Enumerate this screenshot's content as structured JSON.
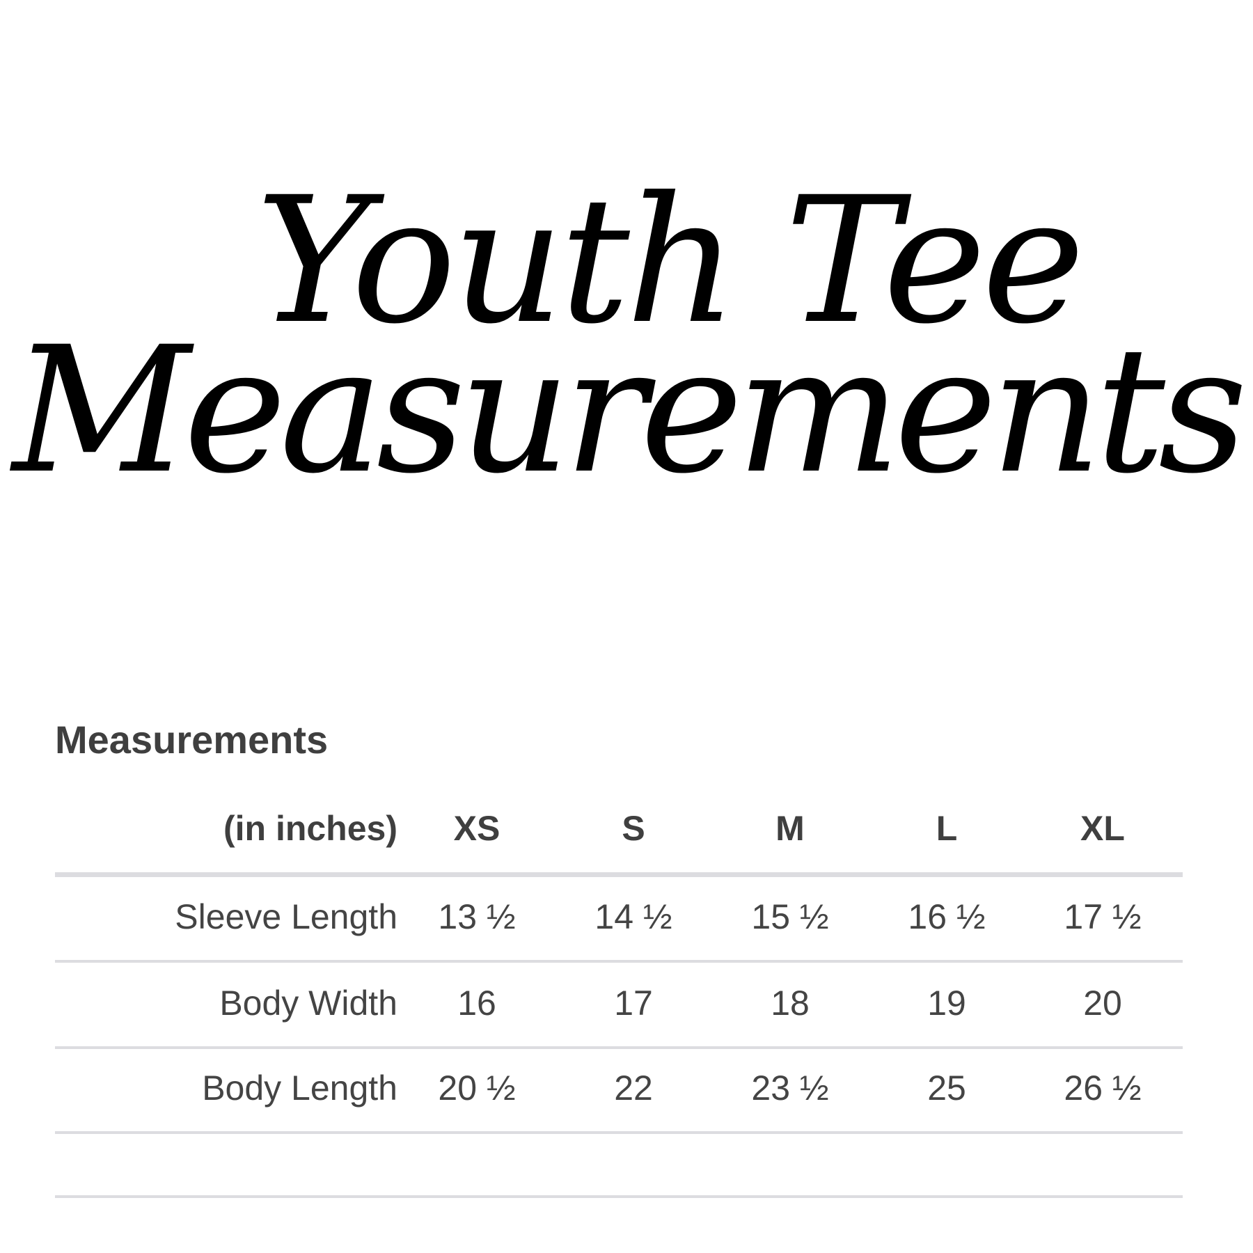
{
  "title": {
    "line1": "Youth Tee",
    "line2": "Measurements"
  },
  "table": {
    "heading": "Measurements",
    "unit_label": "(in inches)",
    "sizes": [
      "XS",
      "S",
      "M",
      "L",
      "XL"
    ],
    "rows": [
      {
        "label": "Sleeve Length",
        "values": [
          "13 ½",
          "14 ½",
          "15 ½",
          "16 ½",
          "17 ½"
        ]
      },
      {
        "label": "Body Width",
        "values": [
          "16",
          "17",
          "18",
          "19",
          "20"
        ]
      },
      {
        "label": "Body Length",
        "values": [
          "20 ½",
          "22",
          "23 ½",
          "25",
          "26 ½"
        ]
      }
    ]
  }
}
